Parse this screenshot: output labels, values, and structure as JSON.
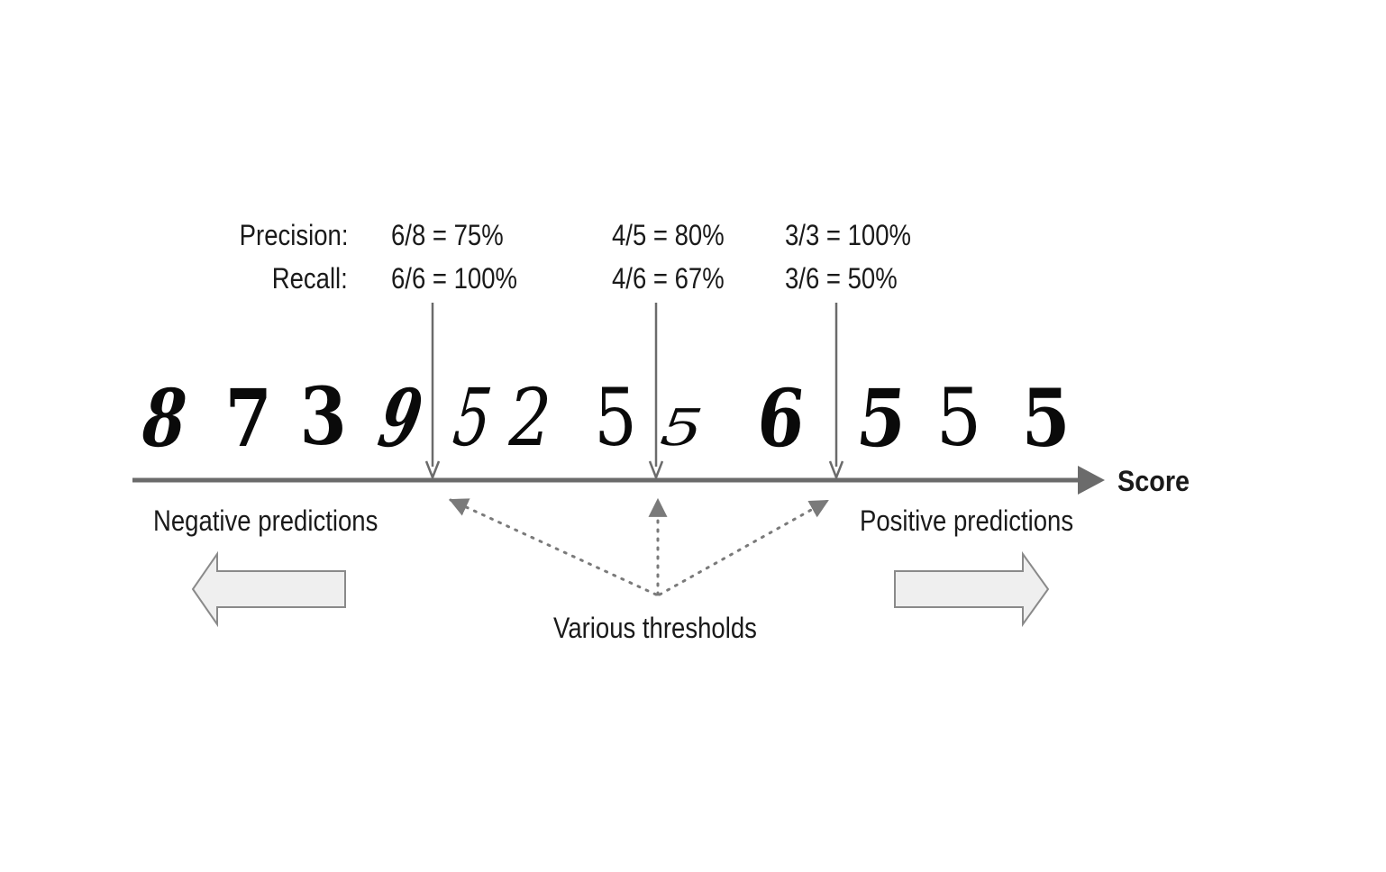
{
  "labels": {
    "precision": "Precision:",
    "recall": "Recall:",
    "score": "Score",
    "negative": "Negative predictions",
    "positive": "Positive predictions",
    "thresholds": "Various thresholds"
  },
  "thresholds": [
    {
      "precision": "6/8 = 75%",
      "recall": "6/6 = 100%"
    },
    {
      "precision": "4/5 = 80%",
      "recall": "4/6 = 67%"
    },
    {
      "precision": "3/3 = 100%",
      "recall": "3/6 = 50%"
    }
  ],
  "digits": [
    "8",
    "7",
    "3",
    "9",
    "5",
    "2",
    "5",
    "5",
    "6",
    "5",
    "5",
    "5"
  ],
  "colors": {
    "axis": "#6b6b6b",
    "dotted": "#7a7a7a",
    "arrow_fill": "#efefef",
    "arrow_stroke": "#8a8a8a",
    "text": "#1a1a1a"
  }
}
